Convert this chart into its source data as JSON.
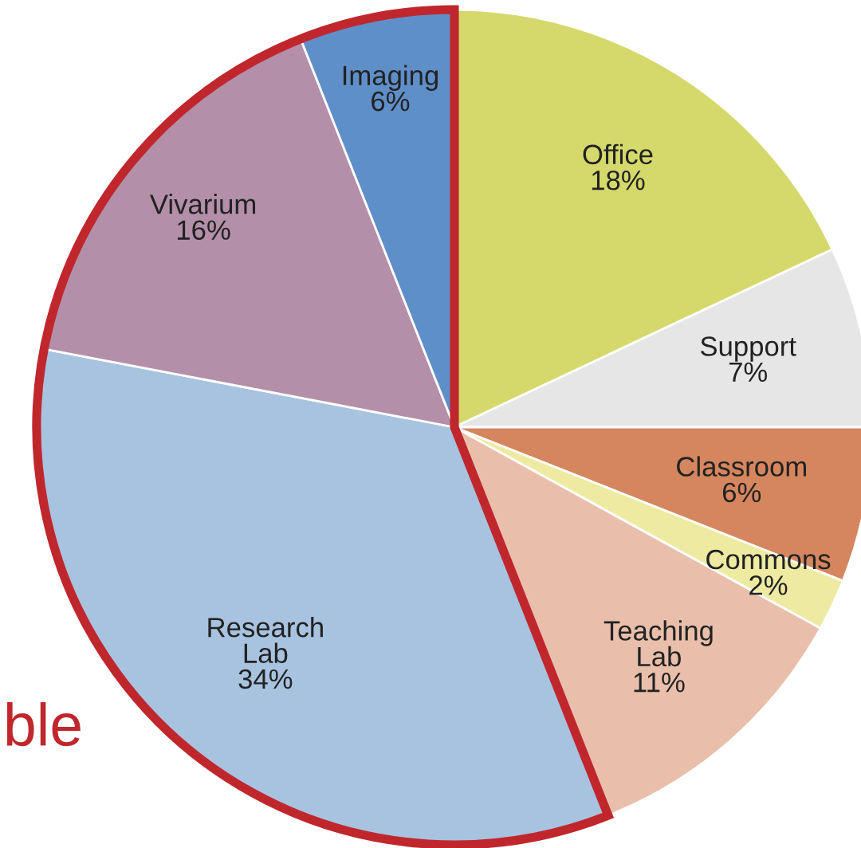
{
  "chart_data": {
    "type": "pie",
    "categories": [
      "Office",
      "Support",
      "Classroom",
      "Commons",
      "Teaching\nLab",
      "Research\nLab",
      "Vivarium",
      "Imaging"
    ],
    "values": [
      18,
      7,
      6,
      2,
      11,
      34,
      16,
      6
    ],
    "colors": [
      "#d5d96c",
      "#e6e6e6",
      "#d5865e",
      "#eeeaa2",
      "#e9bfab",
      "#a7c3e0",
      "#b48fa9",
      "#5f8fc8"
    ],
    "value_labels": [
      "18%",
      "7%",
      "6%",
      "2%",
      "11%",
      "34%",
      "16%",
      "6%"
    ],
    "annotations": [
      "ble"
    ]
  }
}
